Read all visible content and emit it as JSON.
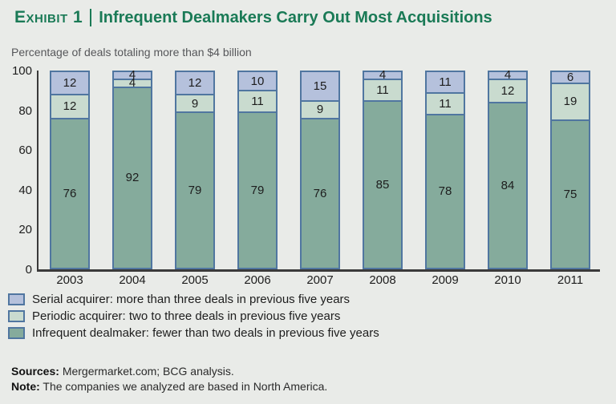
{
  "header": {
    "exhibit_label": "Exhibit 1",
    "title": "Infrequent Dealmakers Carry Out Most Acquisitions"
  },
  "chart_data": {
    "type": "bar",
    "stacked": true,
    "subtitle": "Percentage of deals totaling more than $4 billion",
    "categories": [
      "2003",
      "2004",
      "2005",
      "2006",
      "2007",
      "2008",
      "2009",
      "2010",
      "2011"
    ],
    "series": [
      {
        "name": "Infrequent dealmaker: fewer than two deals in previous five years",
        "color": "#85ab9c",
        "values": [
          76,
          92,
          79,
          79,
          76,
          85,
          78,
          84,
          75
        ]
      },
      {
        "name": "Periodic acquirer: two to three deals in previous five years",
        "color": "#c9dbcf",
        "values": [
          12,
          4,
          9,
          11,
          9,
          11,
          11,
          12,
          19
        ]
      },
      {
        "name": "Serial acquirer: more than three deals in previous five years",
        "color": "#b5c1dc",
        "values": [
          12,
          4,
          12,
          10,
          15,
          4,
          11,
          4,
          6
        ]
      }
    ],
    "ylim": [
      0,
      100
    ],
    "yticks": [
      0,
      20,
      40,
      60,
      80,
      100
    ],
    "xlabel": "",
    "ylabel": "",
    "grid": false,
    "legend_position": "bottom"
  },
  "footer": {
    "sources_label": "Sources:",
    "sources_text": "Mergermarket.com; BCG analysis.",
    "note_label": "Note:",
    "note_text": "The companies we analyzed are based in North America."
  },
  "colors": {
    "title_green": "#1a7a56",
    "bar_border": "#5076a0",
    "axis": "#3a3a3a",
    "background": "#e9ebe8"
  }
}
